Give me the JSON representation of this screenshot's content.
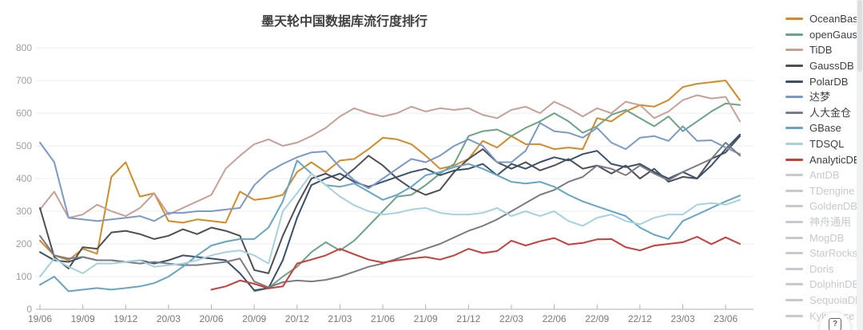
{
  "chart": {
    "title": "墨天轮中国数据库流行度排行"
  },
  "chart_data": {
    "type": "line",
    "title": "墨天轮中国数据库流行度排行",
    "ylim": [
      0,
      800
    ],
    "y_ticks": [
      0,
      100,
      200,
      300,
      400,
      500,
      600,
      700,
      800
    ],
    "grid": true,
    "legend_position": "right",
    "x_tick_labels": [
      "19/06",
      "19/09",
      "19/12",
      "20/03",
      "20/06",
      "20/09",
      "20/12",
      "21/03",
      "21/06",
      "21/09",
      "21/12",
      "22/03",
      "22/06",
      "22/09",
      "22/12",
      "23/03",
      "23/06"
    ],
    "x": [
      "19/06",
      "19/07",
      "19/08",
      "19/09",
      "19/10",
      "19/11",
      "19/12",
      "20/01",
      "20/02",
      "20/03",
      "20/04",
      "20/05",
      "20/06",
      "20/07",
      "20/08",
      "20/09",
      "20/10",
      "20/11",
      "20/12",
      "21/01",
      "21/02",
      "21/03",
      "21/04",
      "21/05",
      "21/06",
      "21/07",
      "21/08",
      "21/09",
      "21/10",
      "21/11",
      "21/12",
      "22/01",
      "22/02",
      "22/03",
      "22/04",
      "22/05",
      "22/06",
      "22/07",
      "22/08",
      "22/09",
      "22/10",
      "22/11",
      "22/12",
      "23/01",
      "23/02",
      "23/03",
      "23/04",
      "23/05",
      "23/06",
      "23/07"
    ],
    "series": [
      {
        "name": "OceanBase",
        "key": "oceanbase",
        "color": "#d48b25",
        "values": [
          210,
          165,
          150,
          185,
          170,
          405,
          450,
          345,
          355,
          270,
          265,
          275,
          270,
          265,
          360,
          335,
          340,
          350,
          420,
          450,
          420,
          455,
          460,
          490,
          525,
          520,
          505,
          470,
          430,
          440,
          460,
          515,
          495,
          530,
          505,
          505,
          490,
          495,
          490,
          585,
          575,
          605,
          625,
          620,
          640,
          680,
          690,
          695,
          700,
          640
        ]
      },
      {
        "name": "openGauss",
        "key": "opengauss",
        "color": "#6ba484",
        "values": [
          null,
          null,
          null,
          null,
          null,
          null,
          null,
          null,
          null,
          null,
          null,
          null,
          null,
          null,
          null,
          55,
          65,
          100,
          130,
          175,
          205,
          180,
          210,
          255,
          300,
          345,
          350,
          380,
          415,
          445,
          530,
          545,
          550,
          530,
          555,
          575,
          600,
          575,
          540,
          560,
          595,
          610,
          585,
          560,
          590,
          545,
          575,
          605,
          630,
          625
        ]
      },
      {
        "name": "TiDB",
        "key": "tidb",
        "color": "#c7a095",
        "values": [
          305,
          360,
          280,
          290,
          320,
          300,
          285,
          310,
          355,
          290,
          310,
          330,
          350,
          430,
          470,
          505,
          520,
          500,
          510,
          530,
          555,
          590,
          615,
          600,
          590,
          600,
          620,
          605,
          615,
          610,
          615,
          595,
          585,
          610,
          620,
          600,
          635,
          615,
          590,
          615,
          600,
          635,
          625,
          585,
          605,
          640,
          655,
          645,
          650,
          575
        ]
      },
      {
        "name": "GaussDB",
        "key": "gaussdb",
        "color": "#4e4e56",
        "values": [
          310,
          160,
          125,
          190,
          185,
          235,
          240,
          230,
          215,
          225,
          245,
          230,
          250,
          240,
          225,
          120,
          110,
          225,
          320,
          400,
          415,
          395,
          430,
          470,
          440,
          400,
          370,
          350,
          365,
          420,
          460,
          490,
          450,
          430,
          450,
          425,
          440,
          460,
          430,
          440,
          415,
          440,
          400,
          430,
          390,
          405,
          400,
          460,
          480,
          530
        ]
      },
      {
        "name": "PolarDB",
        "key": "polardb",
        "color": "#3a506b",
        "values": [
          175,
          150,
          145,
          160,
          150,
          150,
          145,
          150,
          140,
          150,
          165,
          160,
          155,
          150,
          110,
          58,
          65,
          150,
          280,
          380,
          400,
          415,
          390,
          375,
          390,
          405,
          420,
          430,
          410,
          425,
          430,
          445,
          410,
          445,
          430,
          450,
          465,
          455,
          475,
          485,
          445,
          435,
          445,
          420,
          400,
          420,
          400,
          440,
          490,
          535
        ]
      },
      {
        "name": "达梦",
        "key": "dameng",
        "color": "#7b99c8",
        "values": [
          510,
          450,
          280,
          275,
          270,
          275,
          280,
          285,
          270,
          295,
          295,
          300,
          300,
          305,
          310,
          380,
          420,
          445,
          465,
          480,
          483,
          435,
          395,
          370,
          400,
          430,
          460,
          450,
          470,
          500,
          520,
          500,
          450,
          450,
          485,
          570,
          545,
          540,
          525,
          555,
          510,
          490,
          525,
          530,
          515,
          560,
          515,
          517,
          495,
          475
        ]
      },
      {
        "name": "人大金仓",
        "key": "renda-jincang",
        "color": "#797c82",
        "values": [
          225,
          165,
          155,
          160,
          150,
          150,
          145,
          140,
          145,
          140,
          135,
          135,
          140,
          145,
          155,
          85,
          67,
          83,
          88,
          85,
          90,
          100,
          115,
          130,
          140,
          155,
          170,
          185,
          200,
          220,
          240,
          255,
          275,
          300,
          325,
          350,
          365,
          390,
          405,
          440,
          430,
          410,
          440,
          415,
          395,
          420,
          440,
          460,
          510,
          470
        ]
      },
      {
        "name": "GBase",
        "key": "gbase",
        "color": "#64a6c4",
        "values": [
          75,
          100,
          55,
          60,
          65,
          60,
          65,
          70,
          80,
          100,
          130,
          165,
          195,
          207,
          215,
          215,
          250,
          330,
          455,
          415,
          380,
          375,
          385,
          360,
          335,
          350,
          375,
          410,
          420,
          435,
          445,
          430,
          410,
          390,
          385,
          390,
          375,
          350,
          330,
          315,
          300,
          285,
          250,
          228,
          215,
          270,
          290,
          310,
          330,
          348
        ]
      },
      {
        "name": "TDSQL",
        "key": "tdsql",
        "color": "#a5d2dd",
        "values": [
          100,
          155,
          130,
          110,
          140,
          140,
          145,
          150,
          130,
          135,
          140,
          150,
          165,
          175,
          180,
          165,
          140,
          300,
          355,
          415,
          380,
          345,
          318,
          300,
          290,
          295,
          305,
          310,
          295,
          290,
          290,
          295,
          310,
          285,
          300,
          285,
          300,
          270,
          255,
          280,
          290,
          270,
          260,
          280,
          290,
          290,
          320,
          325,
          320,
          335
        ]
      },
      {
        "name": "AnalyticDB",
        "key": "analyticdb",
        "color": "#cc3c38",
        "values": [
          null,
          null,
          null,
          null,
          null,
          null,
          null,
          null,
          null,
          null,
          null,
          null,
          60,
          70,
          88,
          78,
          64,
          70,
          140,
          152,
          165,
          185,
          168,
          152,
          143,
          150,
          155,
          160,
          152,
          165,
          185,
          172,
          178,
          210,
          195,
          208,
          218,
          198,
          203,
          214,
          215,
          190,
          180,
          195,
          200,
          205,
          222,
          199,
          220,
          200
        ]
      }
    ],
    "disabled_series": [
      "AntDB",
      "TDengine",
      "GoldenDB",
      "神舟通用",
      "MogDB",
      "StarRocks",
      "Doris",
      "DolphinDB",
      "SequoiaDB",
      "Kyligence"
    ]
  },
  "legend": {
    "disabled_color": "#c6c9ce"
  },
  "help_button": {
    "glyph": "?"
  },
  "style": {
    "grid_color": "#e8eef4",
    "axis_color": "#aeb3ba",
    "y_label_color": "#9aa0a6",
    "x_label_color": "#75787e"
  }
}
